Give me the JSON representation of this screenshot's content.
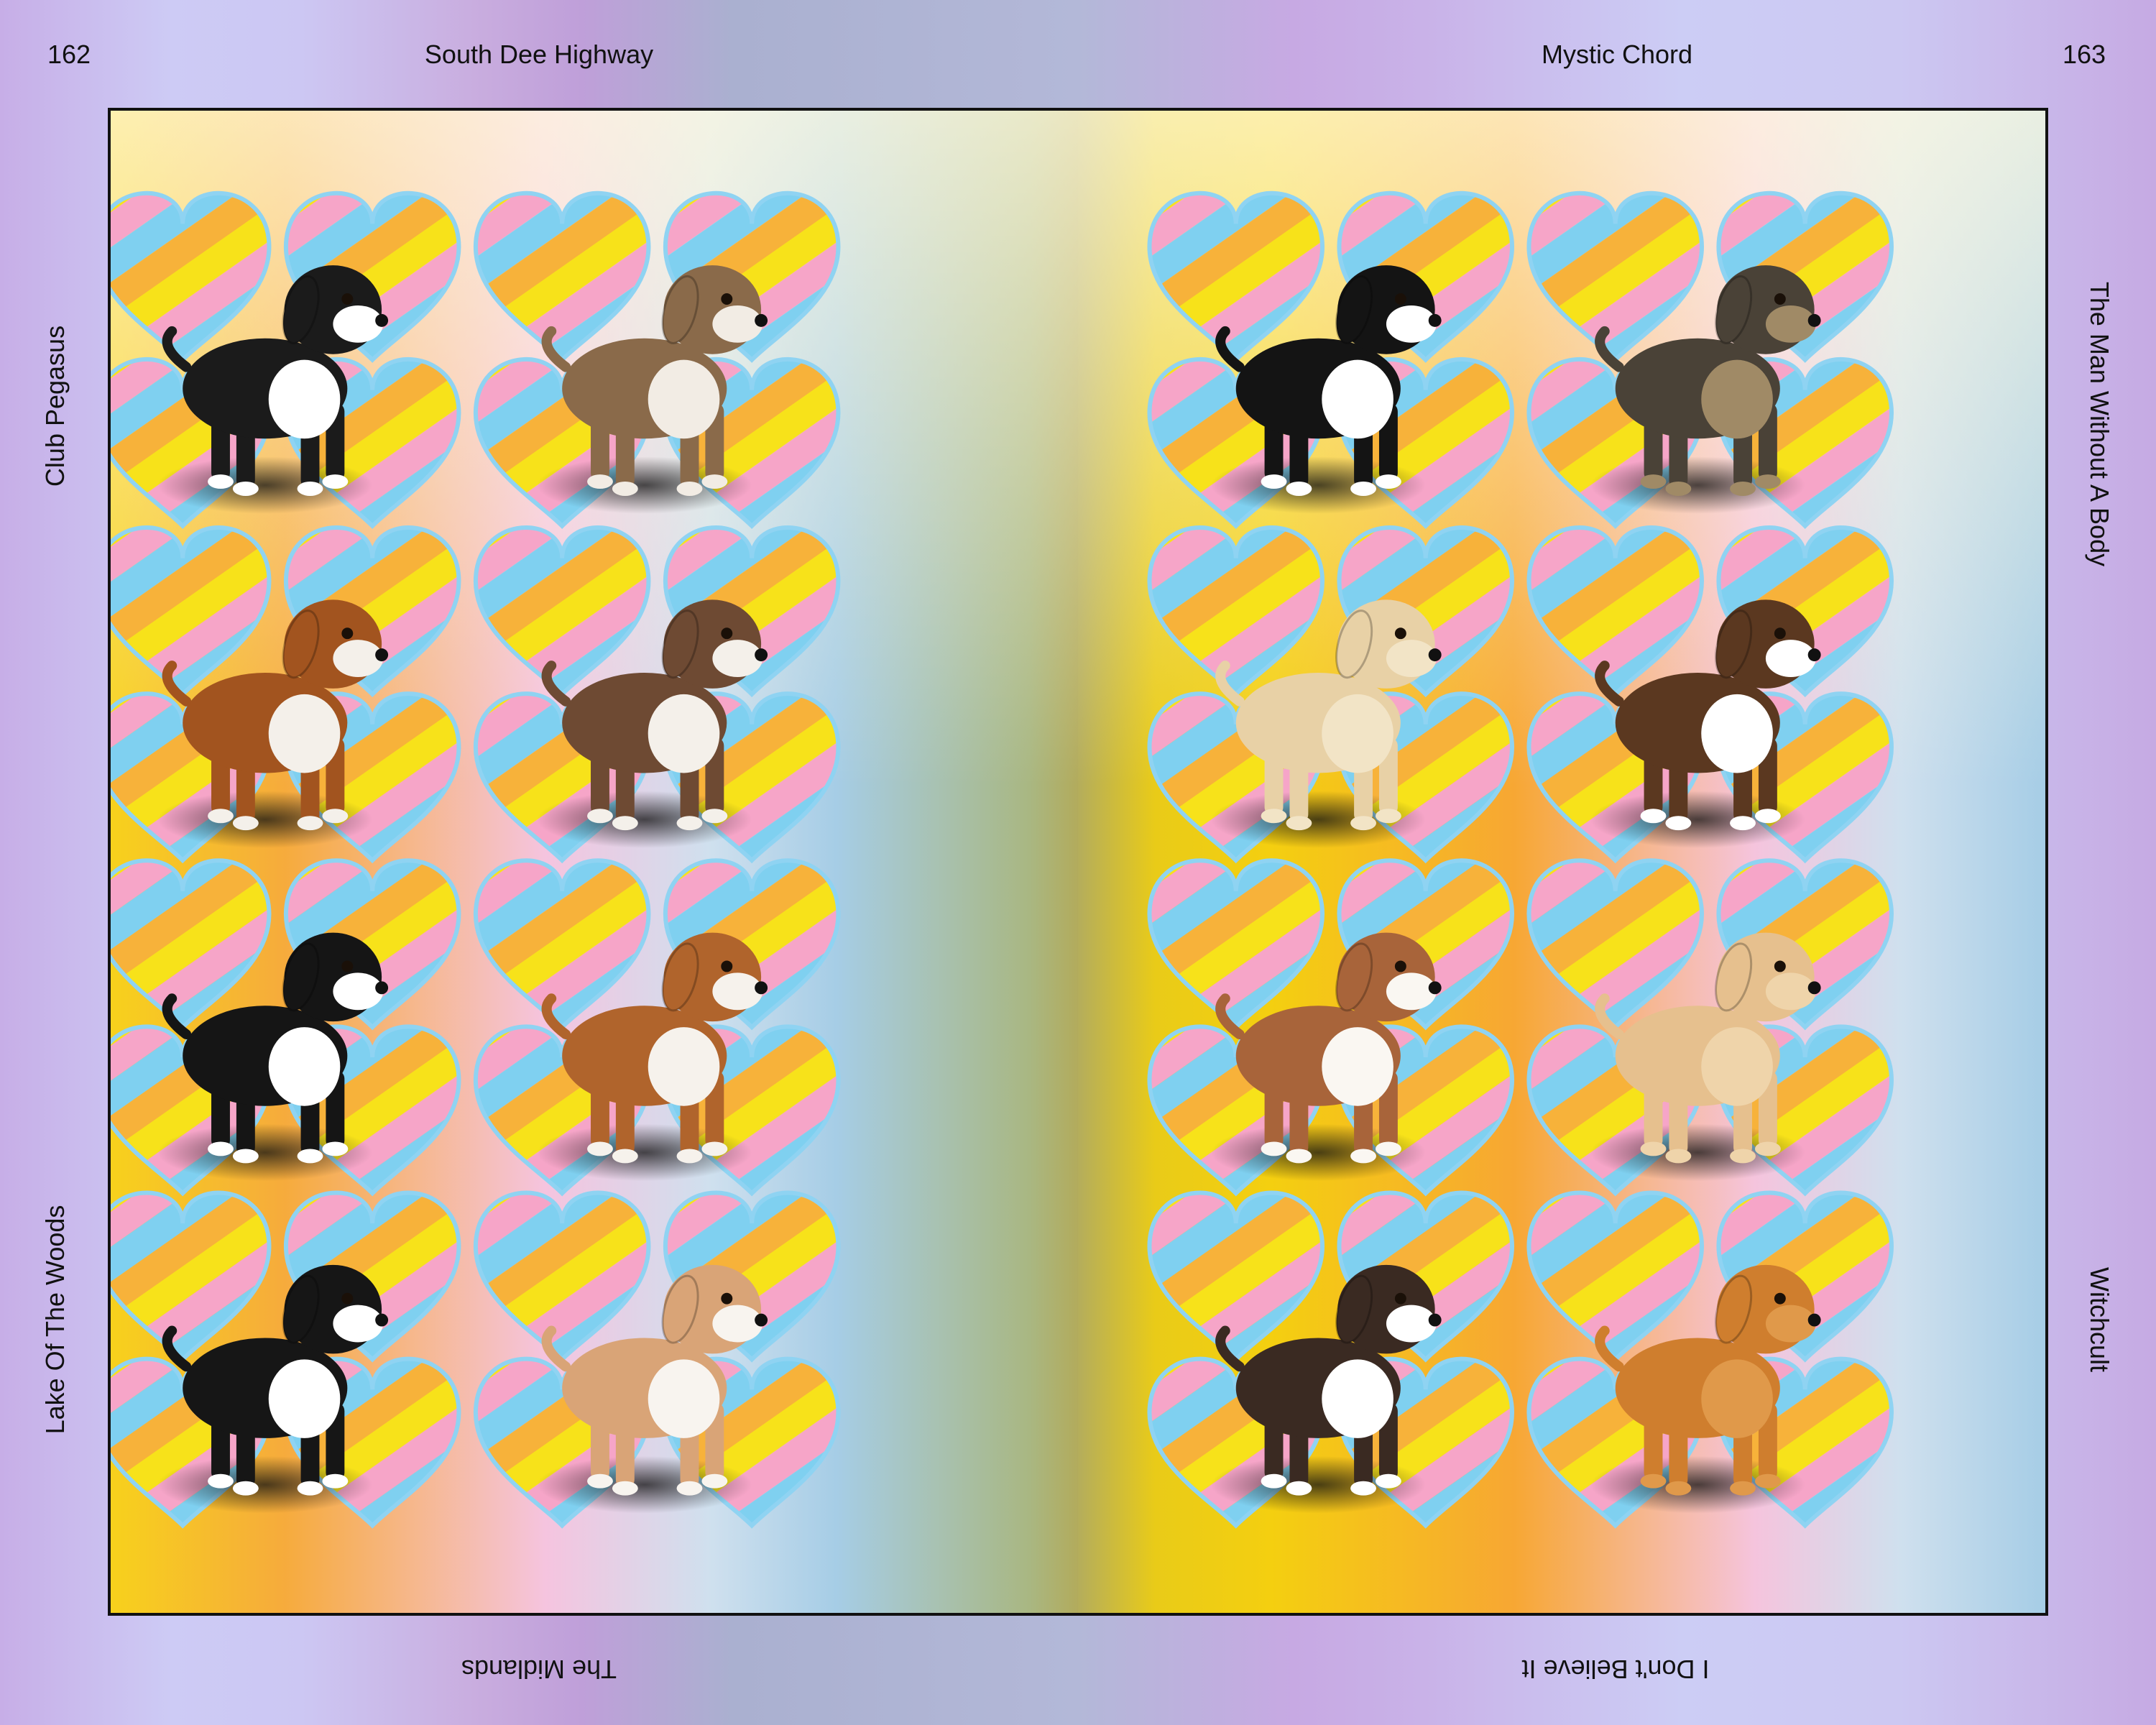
{
  "header": {
    "left_page_number": "162",
    "left_running_title": "South Dee Highway",
    "right_running_title": "Mystic Chord",
    "right_page_number": "163"
  },
  "side_labels": {
    "left_top": "Club Pegasus",
    "left_bottom": "Lake Of The Woods",
    "right_top": "The Man Without A Body",
    "right_bottom": "Witchcult"
  },
  "footer": {
    "left_inverted": "The Midlands",
    "right_inverted": "I Don't Believe It"
  },
  "colors": {
    "frame_border": "#111111",
    "heart_stripes": [
      "#f7e21a",
      "#f6a5c8",
      "#7fd0f0",
      "#f7b23a"
    ]
  },
  "left_page": {
    "puppies": [
      {
        "icon": "puppy-icon",
        "coat": "#1b1b1b",
        "accent": "#ffffff"
      },
      {
        "icon": "puppy-icon",
        "coat": "#8a6a4a",
        "accent": "#f2ece4"
      },
      {
        "icon": "puppy-icon",
        "coat": "#a2541f",
        "accent": "#f4f0ea"
      },
      {
        "icon": "puppy-icon",
        "coat": "#6e4a33",
        "accent": "#f4f0ea"
      },
      {
        "icon": "puppy-icon",
        "coat": "#151515",
        "accent": "#ffffff"
      },
      {
        "icon": "puppy-icon",
        "coat": "#b0642c",
        "accent": "#f6f2ec"
      },
      {
        "icon": "puppy-icon",
        "coat": "#161616",
        "accent": "#ffffff"
      },
      {
        "icon": "puppy-icon",
        "coat": "#d9a477",
        "accent": "#f8f4ef"
      }
    ]
  },
  "right_page": {
    "puppies": [
      {
        "icon": "puppy-icon",
        "coat": "#141414",
        "accent": "#ffffff"
      },
      {
        "icon": "puppy-icon",
        "coat": "#4a4237",
        "accent": "#a08a66"
      },
      {
        "icon": "puppy-icon",
        "coat": "#e8d1a6",
        "accent": "#f2e4c6"
      },
      {
        "icon": "puppy-icon",
        "coat": "#5b3820",
        "accent": "#ffffff"
      },
      {
        "icon": "puppy-icon",
        "coat": "#a8643a",
        "accent": "#faf7f2"
      },
      {
        "icon": "puppy-icon",
        "coat": "#e6c08e",
        "accent": "#efd4aa"
      },
      {
        "icon": "puppy-icon",
        "coat": "#3a2a22",
        "accent": "#ffffff"
      },
      {
        "icon": "puppy-icon",
        "coat": "#cf7e2e",
        "accent": "#e0994a"
      }
    ]
  }
}
